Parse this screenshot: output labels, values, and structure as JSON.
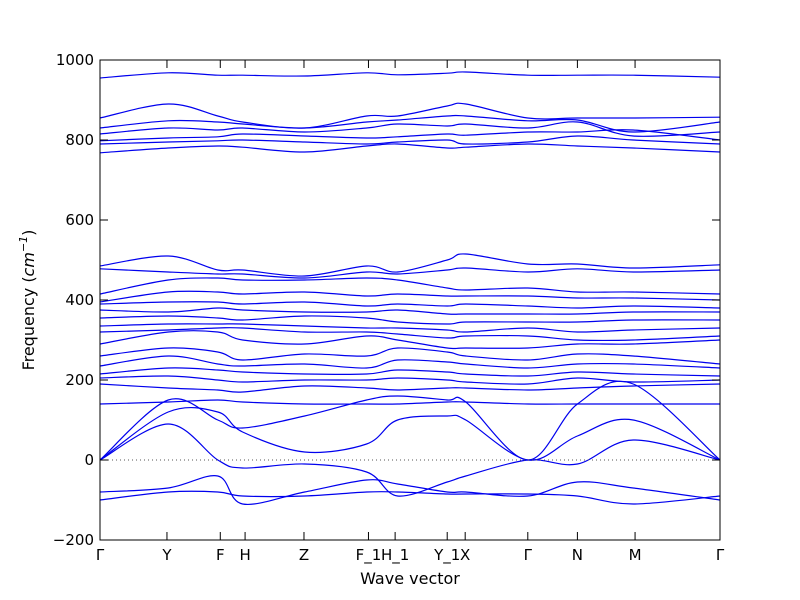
{
  "chart_data": {
    "type": "line",
    "title": "",
    "xlabel": "Wave vector",
    "ylabel_prefix": "Frequency (",
    "ylabel_unit": "cm",
    "ylabel_exp": "−1",
    "ylabel_suffix": ")",
    "ylim": [
      -200,
      1000
    ],
    "yticks": [
      -200,
      0,
      200,
      400,
      600,
      800,
      1000
    ],
    "xlim": [
      0,
      1
    ],
    "grid": false,
    "line_color": "#0000ee",
    "zero_line": {
      "y": 0,
      "style": "dotted",
      "color": "#555555"
    },
    "high_symmetry_points": [
      {
        "label": "Γ",
        "x": 0.0
      },
      {
        "label": "Y",
        "x": 0.108
      },
      {
        "label": "F",
        "x": 0.194
      },
      {
        "label": "H",
        "x": 0.234
      },
      {
        "label": "Z",
        "x": 0.329
      },
      {
        "label": "F_1",
        "x": 0.433
      },
      {
        "label": "H_1",
        "x": 0.476
      },
      {
        "label": "Y_1",
        "x": 0.56
      },
      {
        "label": "X",
        "x": 0.589
      },
      {
        "label": "Γ",
        "x": 0.69
      },
      {
        "label": "N",
        "x": 0.77
      },
      {
        "label": "M",
        "x": 0.863
      },
      {
        "label": "Γ",
        "x": 1.0
      }
    ],
    "series": [
      {
        "x": [
          0,
          0.11,
          0.19,
          0.23,
          0.33,
          0.43,
          0.48,
          0.56,
          0.59,
          0.69,
          0.77,
          0.86,
          1
        ],
        "values": [
          955,
          968,
          962,
          962,
          960,
          968,
          963,
          967,
          970,
          962,
          962,
          962,
          957
        ]
      },
      {
        "x": [
          0,
          0.11,
          0.19,
          0.23,
          0.33,
          0.43,
          0.48,
          0.56,
          0.59,
          0.69,
          0.77,
          0.86,
          1
        ],
        "values": [
          855,
          890,
          860,
          845,
          830,
          860,
          860,
          885,
          890,
          855,
          855,
          855,
          857
        ]
      },
      {
        "x": [
          0,
          0.11,
          0.19,
          0.23,
          0.33,
          0.43,
          0.48,
          0.56,
          0.59,
          0.69,
          0.77,
          0.86,
          1
        ],
        "values": [
          830,
          848,
          845,
          840,
          830,
          845,
          850,
          860,
          860,
          848,
          850,
          820,
          845
        ]
      },
      {
        "x": [
          0,
          0.11,
          0.19,
          0.23,
          0.33,
          0.43,
          0.48,
          0.56,
          0.59,
          0.69,
          0.77,
          0.86,
          1
        ],
        "values": [
          815,
          830,
          825,
          830,
          820,
          830,
          840,
          835,
          840,
          830,
          845,
          810,
          820
        ]
      },
      {
        "x": [
          0,
          0.11,
          0.19,
          0.23,
          0.33,
          0.43,
          0.48,
          0.56,
          0.59,
          0.69,
          0.77,
          0.86,
          1
        ],
        "values": [
          798,
          805,
          808,
          815,
          810,
          805,
          808,
          815,
          812,
          820,
          820,
          825,
          800
        ]
      },
      {
        "x": [
          0,
          0.11,
          0.19,
          0.23,
          0.33,
          0.43,
          0.48,
          0.56,
          0.59,
          0.69,
          0.77,
          0.86,
          1
        ],
        "values": [
          790,
          795,
          798,
          800,
          795,
          790,
          795,
          800,
          790,
          795,
          810,
          800,
          790
        ]
      },
      {
        "x": [
          0,
          0.11,
          0.19,
          0.23,
          0.33,
          0.43,
          0.48,
          0.56,
          0.59,
          0.69,
          0.77,
          0.86,
          1
        ],
        "values": [
          768,
          780,
          785,
          782,
          770,
          785,
          790,
          780,
          782,
          790,
          785,
          780,
          770
        ]
      },
      {
        "x": [
          0,
          0.11,
          0.19,
          0.23,
          0.33,
          0.43,
          0.48,
          0.56,
          0.59,
          0.69,
          0.77,
          0.86,
          1
        ],
        "values": [
          485,
          510,
          475,
          475,
          460,
          485,
          470,
          500,
          515,
          490,
          490,
          480,
          488
        ]
      },
      {
        "x": [
          0,
          0.11,
          0.19,
          0.23,
          0.33,
          0.43,
          0.48,
          0.56,
          0.59,
          0.69,
          0.77,
          0.86,
          1
        ],
        "values": [
          478,
          470,
          465,
          465,
          455,
          470,
          465,
          475,
          480,
          470,
          478,
          470,
          475
        ]
      },
      {
        "x": [
          0,
          0.11,
          0.19,
          0.23,
          0.33,
          0.43,
          0.48,
          0.56,
          0.59,
          0.69,
          0.77,
          0.86,
          1
        ],
        "values": [
          415,
          450,
          455,
          450,
          450,
          455,
          450,
          430,
          425,
          430,
          420,
          420,
          415
        ]
      },
      {
        "x": [
          0,
          0.11,
          0.19,
          0.23,
          0.33,
          0.43,
          0.48,
          0.56,
          0.59,
          0.69,
          0.77,
          0.86,
          1
        ],
        "values": [
          395,
          420,
          420,
          415,
          420,
          410,
          415,
          410,
          410,
          410,
          405,
          405,
          400
        ]
      },
      {
        "x": [
          0,
          0.11,
          0.19,
          0.23,
          0.33,
          0.43,
          0.48,
          0.56,
          0.59,
          0.69,
          0.77,
          0.86,
          1
        ],
        "values": [
          390,
          395,
          395,
          390,
          395,
          385,
          390,
          385,
          390,
          385,
          380,
          385,
          380
        ]
      },
      {
        "x": [
          0,
          0.11,
          0.19,
          0.23,
          0.33,
          0.43,
          0.48,
          0.56,
          0.59,
          0.69,
          0.77,
          0.86,
          1
        ],
        "values": [
          375,
          370,
          380,
          375,
          370,
          370,
          375,
          365,
          365,
          365,
          365,
          370,
          370
        ]
      },
      {
        "x": [
          0,
          0.11,
          0.19,
          0.23,
          0.33,
          0.43,
          0.48,
          0.56,
          0.59,
          0.69,
          0.77,
          0.86,
          1
        ],
        "values": [
          355,
          360,
          355,
          350,
          360,
          355,
          345,
          340,
          345,
          345,
          345,
          350,
          350
        ]
      },
      {
        "x": [
          0,
          0.11,
          0.19,
          0.23,
          0.33,
          0.43,
          0.48,
          0.56,
          0.59,
          0.69,
          0.77,
          0.86,
          1
        ],
        "values": [
          335,
          340,
          340,
          340,
          335,
          330,
          330,
          325,
          320,
          330,
          320,
          325,
          330
        ]
      },
      {
        "x": [
          0,
          0.11,
          0.19,
          0.23,
          0.33,
          0.43,
          0.48,
          0.56,
          0.59,
          0.69,
          0.77,
          0.86,
          1
        ],
        "values": [
          320,
          325,
          330,
          330,
          320,
          320,
          315,
          305,
          310,
          310,
          300,
          300,
          310
        ]
      },
      {
        "x": [
          0,
          0.11,
          0.19,
          0.23,
          0.33,
          0.43,
          0.48,
          0.56,
          0.59,
          0.69,
          0.77,
          0.86,
          1
        ],
        "values": [
          290,
          320,
          320,
          300,
          290,
          310,
          300,
          280,
          280,
          280,
          290,
          290,
          300
        ]
      },
      {
        "x": [
          0,
          0.11,
          0.19,
          0.23,
          0.33,
          0.43,
          0.48,
          0.56,
          0.59,
          0.69,
          0.77,
          0.86,
          1
        ],
        "values": [
          260,
          280,
          270,
          250,
          265,
          260,
          280,
          270,
          260,
          250,
          265,
          260,
          240
        ]
      },
      {
        "x": [
          0,
          0.11,
          0.19,
          0.23,
          0.33,
          0.43,
          0.48,
          0.56,
          0.59,
          0.69,
          0.77,
          0.86,
          1
        ],
        "values": [
          235,
          260,
          240,
          235,
          240,
          230,
          250,
          245,
          240,
          230,
          240,
          240,
          230
        ]
      },
      {
        "x": [
          0,
          0.11,
          0.19,
          0.23,
          0.33,
          0.43,
          0.48,
          0.56,
          0.59,
          0.69,
          0.77,
          0.86,
          1
        ],
        "values": [
          215,
          230,
          225,
          220,
          215,
          215,
          225,
          220,
          215,
          210,
          220,
          215,
          210
        ]
      },
      {
        "x": [
          0,
          0.11,
          0.19,
          0.23,
          0.33,
          0.43,
          0.48,
          0.56,
          0.59,
          0.69,
          0.77,
          0.86,
          1
        ],
        "values": [
          205,
          210,
          200,
          195,
          200,
          200,
          205,
          200,
          195,
          190,
          205,
          195,
          200
        ]
      },
      {
        "x": [
          0,
          0.11,
          0.19,
          0.23,
          0.33,
          0.43,
          0.48,
          0.56,
          0.59,
          0.69,
          0.77,
          0.86,
          1
        ],
        "values": [
          190,
          180,
          175,
          170,
          185,
          180,
          175,
          180,
          180,
          175,
          180,
          185,
          190
        ]
      },
      {
        "x": [
          0,
          0.11,
          0.19,
          0.23,
          0.33,
          0.43,
          0.48,
          0.56,
          0.59,
          0.69,
          0.77,
          0.86,
          1
        ],
        "values": [
          140,
          145,
          150,
          145,
          140,
          140,
          140,
          145,
          145,
          140,
          140,
          140,
          140
        ]
      },
      {
        "x": [
          0,
          0.11,
          0.19,
          0.23,
          0.33,
          0.43,
          0.48,
          0.56,
          0.59,
          0.69,
          0.77,
          0.86,
          1
        ],
        "values": [
          0,
          150,
          100,
          80,
          110,
          150,
          160,
          150,
          145,
          0,
          140,
          190,
          0
        ]
      },
      {
        "x": [
          0,
          0.11,
          0.19,
          0.23,
          0.33,
          0.43,
          0.48,
          0.56,
          0.59,
          0.69,
          0.77,
          0.86,
          1
        ],
        "values": [
          0,
          120,
          120,
          70,
          20,
          40,
          100,
          110,
          100,
          0,
          60,
          100,
          0
        ]
      },
      {
        "x": [
          0,
          0.11,
          0.19,
          0.23,
          0.33,
          0.43,
          0.48,
          0.56,
          0.59,
          0.69,
          0.77,
          0.86,
          1
        ],
        "values": [
          0,
          90,
          0,
          -20,
          -10,
          -30,
          -90,
          -55,
          -40,
          0,
          -10,
          50,
          0
        ]
      },
      {
        "x": [
          0,
          0.11,
          0.19,
          0.23,
          0.33,
          0.43,
          0.48,
          0.56,
          0.59,
          0.69,
          0.77,
          0.86,
          1
        ],
        "values": [
          -80,
          -70,
          -40,
          -110,
          -80,
          -50,
          -60,
          -80,
          -80,
          -90,
          -55,
          -70,
          -100
        ]
      },
      {
        "x": [
          0,
          0.11,
          0.19,
          0.23,
          0.33,
          0.43,
          0.48,
          0.56,
          0.59,
          0.69,
          0.77,
          0.86,
          1
        ],
        "values": [
          -100,
          -80,
          -80,
          -90,
          -90,
          -80,
          -80,
          -85,
          -85,
          -85,
          -90,
          -110,
          -90
        ]
      }
    ]
  }
}
